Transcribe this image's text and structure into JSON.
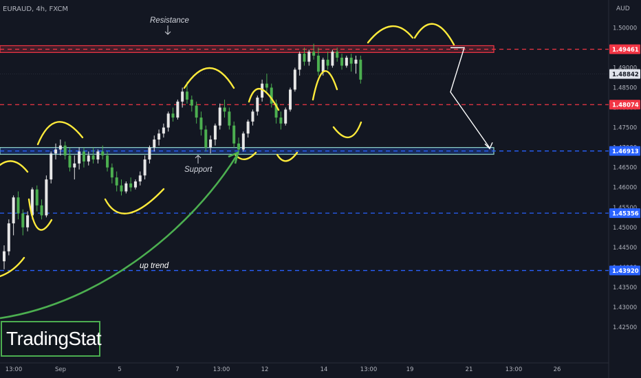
{
  "symbol": "EURAUD, 4h, FXCM",
  "price_unit": "AUD",
  "brand": "TradingStat",
  "annotations": {
    "resistance": "Resistance",
    "support": "Support",
    "trend": "up trend"
  },
  "colors": {
    "background": "#131722",
    "up": "#e6e6e6",
    "down": "#4caf50",
    "resistance": "#f23645",
    "support": "#2962ff",
    "highlight": "#ffeb3b",
    "trend_arrow": "#4caf50",
    "projection": "#ffffff"
  },
  "chart_data": {
    "type": "candlestick",
    "symbol": "EURAUD",
    "timeframe": "4h",
    "source": "FXCM",
    "ylim": [
      1.4195,
      1.5035
    ],
    "y_ticks": [
      "1.50000",
      "1.49500",
      "1.49000",
      "1.48500",
      "1.48000",
      "1.47500",
      "1.47000",
      "1.46500",
      "1.46000",
      "1.45500",
      "1.45000",
      "1.44500",
      "1.44000",
      "1.43500",
      "1.43000",
      "1.42500"
    ],
    "x_ticks": [
      "13:00",
      "Sep",
      "5",
      "7",
      "13:00",
      "12",
      "14",
      "13:00",
      "19",
      "21",
      "13:00",
      "26"
    ],
    "price_levels": [
      {
        "label": "1.49461",
        "value": 1.49461,
        "color": "#f23645",
        "style": "dashed"
      },
      {
        "label": "1.48842",
        "value": 1.48842,
        "color": "#2a2e39",
        "style": "dotted"
      },
      {
        "label": "1.48074",
        "value": 1.48074,
        "color": "#f23645",
        "style": "dashed"
      },
      {
        "label": "1.46913",
        "value": 1.46913,
        "color": "#2962ff",
        "style": "dashed"
      },
      {
        "label": "1.45356",
        "value": 1.45356,
        "color": "#2962ff",
        "style": "dashed"
      },
      {
        "label": "1.43920",
        "value": 1.4392,
        "color": "#2962ff",
        "style": "dashed"
      }
    ],
    "zones": [
      {
        "name": "Resistance",
        "from": 1.4938,
        "to": 1.4955
      },
      {
        "name": "Support",
        "from": 1.4683,
        "to": 1.47
      }
    ],
    "candles": [
      [
        1.4415,
        1.4455,
        1.4395,
        1.444
      ],
      [
        1.444,
        1.452,
        1.443,
        1.451
      ],
      [
        1.451,
        1.458,
        1.448,
        1.4575
      ],
      [
        1.4575,
        1.459,
        1.452,
        1.4535
      ],
      [
        1.4535,
        1.4545,
        1.448,
        1.45
      ],
      [
        1.45,
        1.454,
        1.449,
        1.453
      ],
      [
        1.453,
        1.46,
        1.452,
        1.4595
      ],
      [
        1.4595,
        1.4605,
        1.454,
        1.4555
      ],
      [
        1.4555,
        1.457,
        1.452,
        1.453
      ],
      [
        1.453,
        1.463,
        1.4525,
        1.462
      ],
      [
        1.462,
        1.469,
        1.461,
        1.4685
      ],
      [
        1.4685,
        1.471,
        1.467,
        1.4695
      ],
      [
        1.4695,
        1.472,
        1.468,
        1.4705
      ],
      [
        1.4705,
        1.4715,
        1.467,
        1.468
      ],
      [
        1.468,
        1.47,
        1.464,
        1.465
      ],
      [
        1.465,
        1.468,
        1.462,
        1.466
      ],
      [
        1.466,
        1.47,
        1.4645,
        1.469
      ],
      [
        1.469,
        1.47,
        1.465,
        1.4665
      ],
      [
        1.4665,
        1.469,
        1.4655,
        1.468
      ],
      [
        1.468,
        1.47,
        1.466,
        1.467
      ],
      [
        1.467,
        1.4695,
        1.466,
        1.469
      ],
      [
        1.469,
        1.4705,
        1.467,
        1.468
      ],
      [
        1.468,
        1.469,
        1.464,
        1.465
      ],
      [
        1.465,
        1.466,
        1.461,
        1.4625
      ],
      [
        1.4625,
        1.464,
        1.459,
        1.4605
      ],
      [
        1.4605,
        1.462,
        1.458,
        1.459
      ],
      [
        1.459,
        1.4615,
        1.4585,
        1.461
      ],
      [
        1.461,
        1.4625,
        1.459,
        1.46
      ],
      [
        1.46,
        1.462,
        1.4595,
        1.4615
      ],
      [
        1.4615,
        1.464,
        1.4605,
        1.463
      ],
      [
        1.463,
        1.468,
        1.462,
        1.467
      ],
      [
        1.467,
        1.4705,
        1.466,
        1.47
      ],
      [
        1.47,
        1.473,
        1.469,
        1.472
      ],
      [
        1.472,
        1.4745,
        1.4705,
        1.4735
      ],
      [
        1.4735,
        1.476,
        1.4725,
        1.475
      ],
      [
        1.475,
        1.479,
        1.474,
        1.4785
      ],
      [
        1.4785,
        1.48,
        1.4765,
        1.4775
      ],
      [
        1.4775,
        1.482,
        1.477,
        1.4815
      ],
      [
        1.4815,
        1.485,
        1.48,
        1.484
      ],
      [
        1.484,
        1.4865,
        1.481,
        1.482
      ],
      [
        1.482,
        1.483,
        1.479,
        1.4805
      ],
      [
        1.4805,
        1.4815,
        1.476,
        1.4775
      ],
      [
        1.4775,
        1.479,
        1.473,
        1.4745
      ],
      [
        1.4745,
        1.4755,
        1.469,
        1.47
      ],
      [
        1.47,
        1.473,
        1.4685,
        1.472
      ],
      [
        1.472,
        1.476,
        1.4705,
        1.4755
      ],
      [
        1.4755,
        1.481,
        1.4745,
        1.48
      ],
      [
        1.48,
        1.482,
        1.4775,
        1.479
      ],
      [
        1.479,
        1.48,
        1.4745,
        1.4755
      ],
      [
        1.4755,
        1.4765,
        1.47,
        1.471
      ],
      [
        1.471,
        1.4725,
        1.4685,
        1.4695
      ],
      [
        1.4695,
        1.474,
        1.469,
        1.4735
      ],
      [
        1.4735,
        1.477,
        1.4725,
        1.4765
      ],
      [
        1.4765,
        1.4795,
        1.4755,
        1.479
      ],
      [
        1.479,
        1.483,
        1.478,
        1.4825
      ],
      [
        1.4825,
        1.487,
        1.4815,
        1.486
      ],
      [
        1.486,
        1.4885,
        1.484,
        1.485
      ],
      [
        1.485,
        1.486,
        1.48,
        1.481
      ],
      [
        1.481,
        1.482,
        1.476,
        1.4775
      ],
      [
        1.4775,
        1.479,
        1.4745,
        1.476
      ],
      [
        1.476,
        1.48,
        1.4755,
        1.4795
      ],
      [
        1.4795,
        1.485,
        1.479,
        1.4845
      ],
      [
        1.4845,
        1.49,
        1.484,
        1.4895
      ],
      [
        1.4895,
        1.494,
        1.488,
        1.4935
      ],
      [
        1.4935,
        1.495,
        1.4905,
        1.4915
      ],
      [
        1.4915,
        1.4945,
        1.4905,
        1.494
      ],
      [
        1.494,
        1.496,
        1.492,
        1.493
      ],
      [
        1.493,
        1.495,
        1.488,
        1.489
      ],
      [
        1.489,
        1.4925,
        1.488,
        1.492
      ],
      [
        1.492,
        1.494,
        1.4895,
        1.4905
      ],
      [
        1.4905,
        1.4945,
        1.49,
        1.494
      ],
      [
        1.494,
        1.495,
        1.4915,
        1.4925
      ],
      [
        1.4925,
        1.4935,
        1.4895,
        1.4905
      ],
      [
        1.4905,
        1.493,
        1.49,
        1.4925
      ],
      [
        1.4925,
        1.4935,
        1.489,
        1.491
      ],
      [
        1.491,
        1.493,
        1.4885,
        1.492
      ],
      [
        1.492,
        1.493,
        1.486,
        1.487
      ]
    ],
    "projection": [
      1.495,
      1.487,
      1.4692
    ]
  }
}
